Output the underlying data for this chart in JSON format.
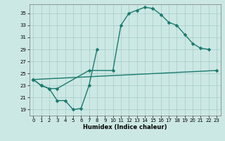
{
  "xlabel": "Humidex (Indice chaleur)",
  "bg_color": "#cce8e4",
  "line_color": "#1a7a6e",
  "grid_color": "#aacfcb",
  "xlim": [
    -0.5,
    23.5
  ],
  "ylim": [
    18.0,
    36.5
  ],
  "yticks": [
    19,
    21,
    23,
    25,
    27,
    29,
    31,
    33,
    35
  ],
  "xticks": [
    0,
    1,
    2,
    3,
    4,
    5,
    6,
    7,
    8,
    9,
    10,
    11,
    12,
    13,
    14,
    15,
    16,
    17,
    18,
    19,
    20,
    21,
    22,
    23
  ],
  "segments_line1": [
    {
      "x": [
        0,
        1,
        2,
        3,
        4,
        5,
        6,
        7,
        8
      ],
      "y": [
        24.0,
        23.0,
        22.5,
        20.5,
        20.5,
        19.0,
        19.2,
        23.0,
        29.0
      ]
    }
  ],
  "segments_line2": [
    {
      "x": [
        0,
        1,
        2,
        3,
        7,
        10,
        11,
        12,
        13,
        14,
        15,
        16,
        17,
        18,
        19,
        20,
        21,
        22
      ],
      "y": [
        24.0,
        23.0,
        22.5,
        22.5,
        25.5,
        25.5,
        33.0,
        35.0,
        35.5,
        36.0,
        35.8,
        34.8,
        33.5,
        33.0,
        31.5,
        30.0,
        29.2,
        29.0
      ]
    }
  ],
  "segments_line3": [
    {
      "x": [
        0,
        23
      ],
      "y": [
        24.0,
        25.5
      ]
    }
  ],
  "markers_line1": {
    "x": [
      0,
      1,
      2,
      3,
      4,
      5,
      6,
      7,
      8
    ],
    "y": [
      24.0,
      23.0,
      22.5,
      20.5,
      20.5,
      19.0,
      19.2,
      23.0,
      29.0
    ]
  },
  "markers_line2": {
    "x": [
      0,
      1,
      2,
      3,
      7,
      10,
      11,
      12,
      13,
      14,
      15,
      16,
      17,
      18,
      19,
      20,
      21,
      22
    ],
    "y": [
      24.0,
      23.0,
      22.5,
      22.5,
      25.5,
      25.5,
      33.0,
      35.0,
      35.5,
      36.0,
      35.8,
      34.8,
      33.5,
      33.0,
      31.5,
      30.0,
      29.2,
      29.0
    ]
  },
  "markers_line3": {
    "x": [
      0,
      23
    ],
    "y": [
      24.0,
      25.5
    ]
  }
}
